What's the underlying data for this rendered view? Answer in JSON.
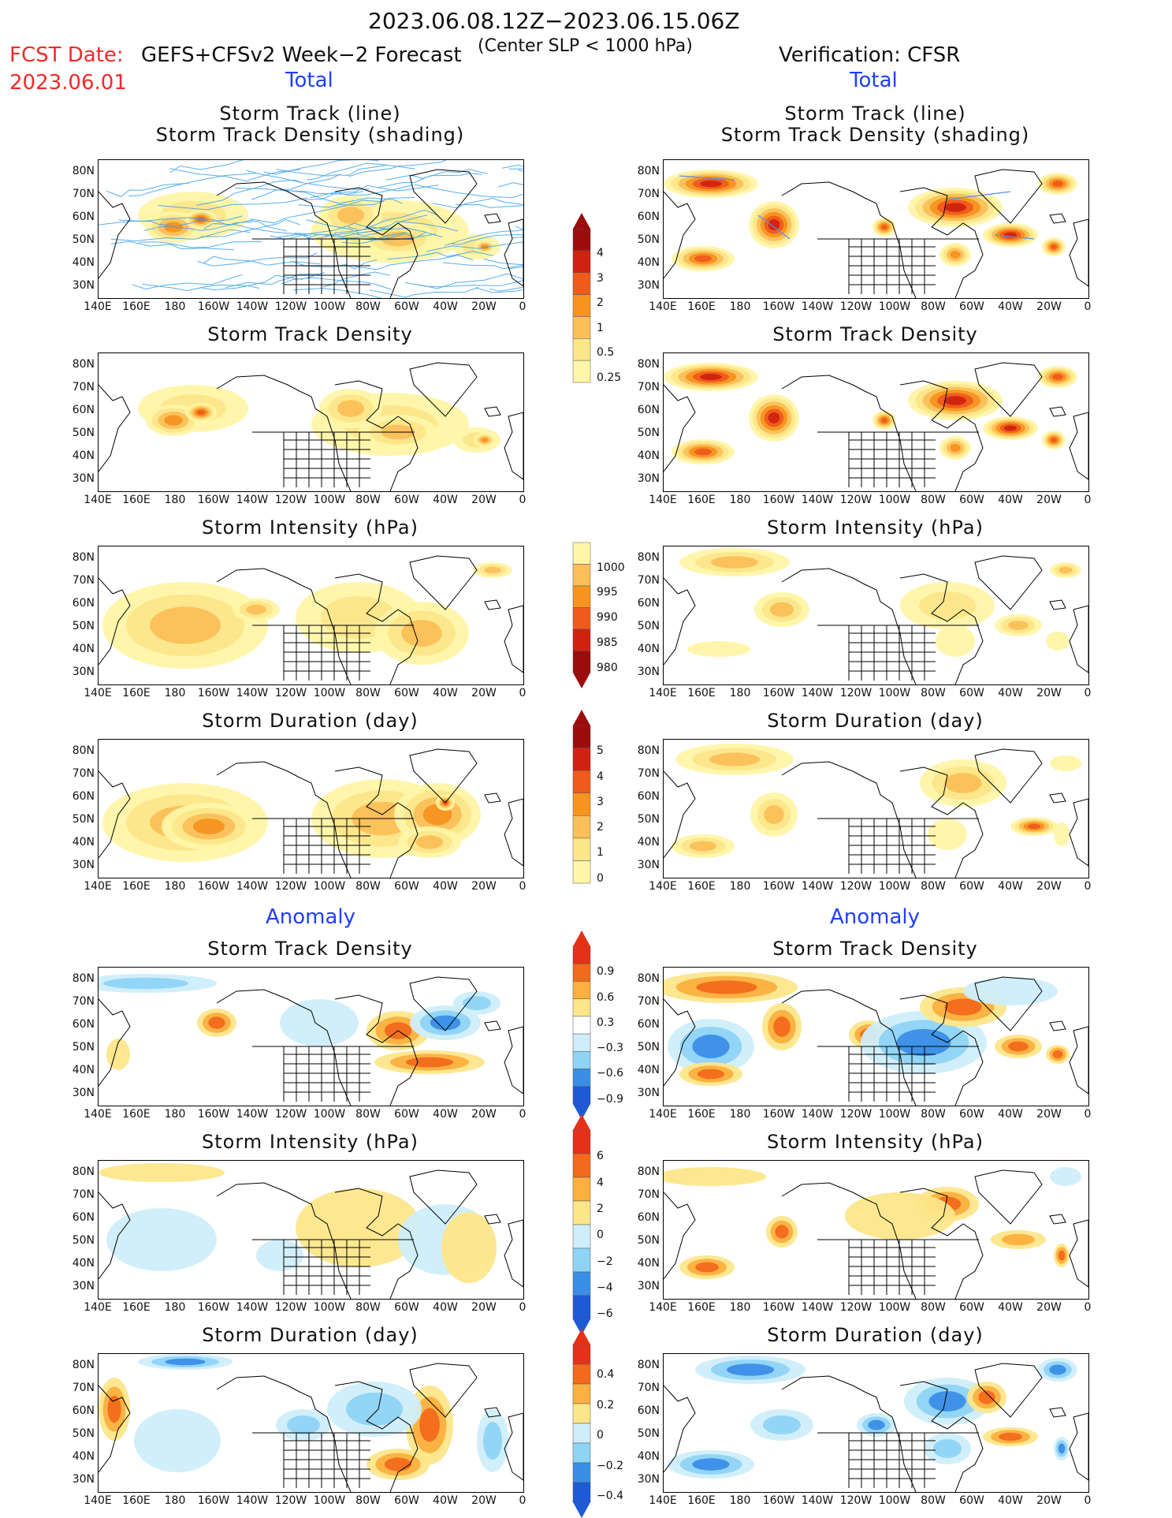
{
  "header": {
    "period": "2023.06.08.12Z−2023.06.15.06Z",
    "fcst_label": "FCST Date:",
    "model": "GEFS+CFSv2 Week−2 Forecast",
    "slp_note": "(Center SLP < 1000 hPa)",
    "verification": "Verification: CFSR",
    "fcst_date": "2023.06.01"
  },
  "sections": {
    "total": "Total",
    "anomaly": "Anomaly"
  },
  "titles": {
    "track_line": "Storm Track (line)",
    "track_density_shading": "Storm Track Density (shading)",
    "track_density": "Storm Track Density",
    "intensity": "Storm Intensity (hPa)",
    "duration": "Storm Duration (day)"
  },
  "axes": {
    "lat_labels": [
      "80N",
      "70N",
      "60N",
      "50N",
      "40N",
      "30N"
    ],
    "lon_labels": [
      "140E",
      "160E",
      "180",
      "160W",
      "140W",
      "120W",
      "100W",
      "80W",
      "60W",
      "40W",
      "20W",
      "0"
    ]
  },
  "colorbars": {
    "total_density": [
      "4",
      "3",
      "2",
      "1",
      "0.5",
      "0.25"
    ],
    "total_intensity": [
      "1000",
      "995",
      "990",
      "985",
      "980"
    ],
    "total_duration": [
      "5",
      "4",
      "3",
      "2",
      "1",
      "0"
    ],
    "anom_density": [
      "0.9",
      "0.6",
      "0.3",
      "−0.3",
      "−0.6",
      "−0.9"
    ],
    "anom_intensity": [
      "6",
      "4",
      "2",
      "0",
      "−2",
      "−4",
      "−6"
    ],
    "anom_duration": [
      "0.4",
      "0.2",
      "0",
      "−0.2",
      "−0.4"
    ]
  },
  "colors": {
    "total_scale": [
      "#fff6a8",
      "#fde68a",
      "#fbc05a",
      "#f7931f",
      "#ef5a1d",
      "#d0220f",
      "#9b0d0d"
    ],
    "anom_pos": [
      "#fde68a",
      "#fbb040",
      "#f26a1b",
      "#e5311a"
    ],
    "anom_neg": [
      "#cfeefa",
      "#8fd3f5",
      "#3a8ee6",
      "#1e5ad6"
    ],
    "track_line": "#3aa0e8"
  }
}
